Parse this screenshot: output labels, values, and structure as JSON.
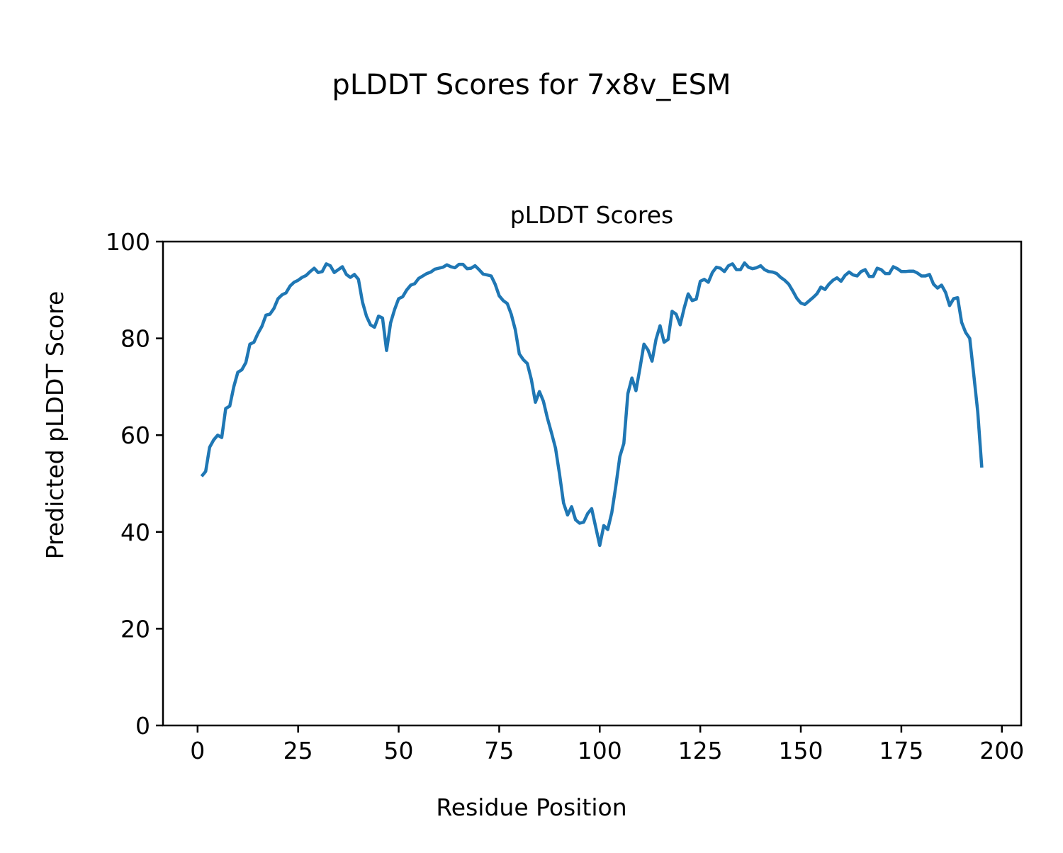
{
  "chart_data": {
    "type": "line",
    "suptitle": "pLDDT Scores for 7x8v_ESM",
    "title": "pLDDT Scores",
    "xlabel": "Residue Position",
    "ylabel": "Predicted pLDDT Score",
    "xlim": [
      -8.6,
      204.8
    ],
    "ylim": [
      0,
      100
    ],
    "xticks": [
      0,
      25,
      50,
      75,
      100,
      125,
      150,
      175,
      200
    ],
    "yticks": [
      0,
      20,
      40,
      60,
      80,
      100
    ],
    "grid": false,
    "series": [
      {
        "name": "pLDDT",
        "color": "#1f77b4",
        "x_start": 1,
        "values": [
          51.5,
          52.5,
          57.5,
          59,
          60,
          59.5,
          65.5,
          66,
          70,
          73,
          73.5,
          75,
          78.8,
          79.2,
          81,
          82.5,
          84.8,
          85,
          86.2,
          88.2,
          89,
          89.4,
          90.8,
          91.6,
          92,
          92.6,
          93,
          93.8,
          94.5,
          93.6,
          93.8,
          95.4,
          95,
          93.6,
          94.2,
          94.8,
          93.2,
          92.6,
          93.2,
          92.2,
          87.5,
          84.6,
          82.8,
          82.3,
          84.6,
          84.2,
          77.5,
          83.2,
          86,
          88.2,
          88.6,
          90,
          91,
          91.3,
          92.4,
          92.9,
          93.4,
          93.7,
          94.3,
          94.5,
          94.7,
          95.2,
          94.8,
          94.6,
          95.3,
          95.3,
          94.4,
          94.5,
          95,
          94.2,
          93.3,
          93.1,
          92.9,
          91.2,
          88.8,
          87.8,
          87.2,
          85,
          81.8,
          76.8,
          75.6,
          74.8,
          71.5,
          66.8,
          69,
          67,
          63.5,
          60.5,
          57.3,
          52,
          46,
          43.5,
          45.2,
          42.5,
          41.8,
          42,
          43.8,
          44.8,
          41,
          37.2,
          41.3,
          40.5,
          44,
          49.5,
          55.6,
          58.3,
          68.6,
          71.8,
          69.2,
          73.8,
          78.8,
          77.6,
          75.3,
          79.8,
          82.6,
          79.2,
          79.8,
          85.6,
          85,
          82.8,
          86.3,
          89.2,
          87.8,
          88.1,
          91.8,
          92.2,
          91.6,
          93.6,
          94.7,
          94.5,
          93.8,
          95,
          95.4,
          94.2,
          94.2,
          95.6,
          94.7,
          94.4,
          94.6,
          95,
          94.2,
          93.8,
          93.7,
          93.4,
          92.6,
          92,
          91.2,
          89.8,
          88.3,
          87.3,
          87,
          87.7,
          88.4,
          89.2,
          90.6,
          90.1,
          91.2,
          92,
          92.5,
          91.8,
          93,
          93.7,
          93.1,
          92.9,
          93.8,
          94.2,
          92.8,
          92.8,
          94.5,
          94.2,
          93.4,
          93.4,
          94.8,
          94.4,
          93.8,
          93.8,
          93.9,
          93.9,
          93.5,
          92.9,
          92.9,
          93.2,
          91.2,
          90.4,
          91,
          89.5,
          86.8,
          88.2,
          88.4,
          83.3,
          81.2,
          80,
          72.6,
          64.8,
          53.3
        ]
      }
    ]
  }
}
